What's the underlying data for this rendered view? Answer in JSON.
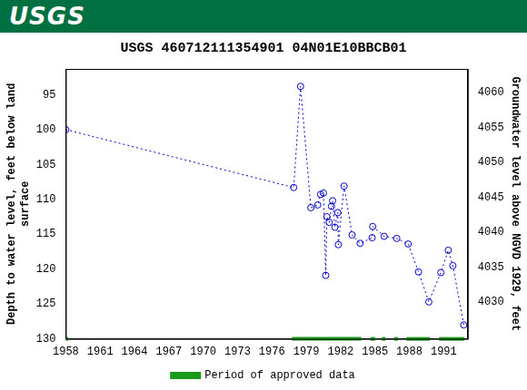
{
  "header": {
    "logo": "USGS"
  },
  "chart_data": {
    "type": "scatter",
    "title": "USGS 460712111354901 04N01E10BBCB01",
    "ylabel": [
      "Depth to water level, feet below land",
      "surface"
    ],
    "y2label": "Groundwater level above NGVD 1929, feet",
    "x": [
      1958.0,
      1977.9,
      1978.5,
      1979.4,
      1980.0,
      1980.25,
      1980.5,
      1980.7,
      1980.8,
      1981.0,
      1981.2,
      1981.3,
      1981.5,
      1981.75,
      1981.8,
      1982.3,
      1983.0,
      1983.7,
      1984.75,
      1984.8,
      1985.8,
      1986.9,
      1987.9,
      1988.8,
      1989.7,
      1990.75,
      1991.4,
      1991.8,
      1992.75
    ],
    "values": [
      100.0,
      108.3,
      93.8,
      111.2,
      110.8,
      109.3,
      109.1,
      120.9,
      112.5,
      113.3,
      111.0,
      110.2,
      114.0,
      111.9,
      116.5,
      108.1,
      115.1,
      116.3,
      115.5,
      113.9,
      115.3,
      115.6,
      116.4,
      120.4,
      124.7,
      120.5,
      117.3,
      119.5,
      128.0
    ],
    "color": "#0000cc",
    "marker": "circle",
    "line_style": "dotted",
    "xlim": [
      1958,
      1993.1
    ],
    "xticks": [
      1958,
      1961,
      1964,
      1967,
      1970,
      1973,
      1976,
      1979,
      1982,
      1985,
      1988,
      1991
    ],
    "ylim": [
      91.3,
      130
    ],
    "yticks": [
      95,
      100,
      105,
      110,
      115,
      120,
      125,
      130
    ],
    "y2lim": [
      4024.7,
      4063.4
    ],
    "y2ticks": [
      4030,
      4035,
      4040,
      4045,
      4050,
      4055,
      4060
    ],
    "approved_periods": {
      "name": "Period of approved data",
      "color": "#1a9a1a",
      "ranges": [
        [
          1958.0,
          1958.2
        ],
        [
          1977.75,
          1983.8
        ],
        [
          1984.6,
          1985.0
        ],
        [
          1985.6,
          1985.9
        ],
        [
          1986.7,
          1987.0
        ],
        [
          1987.75,
          1989.8
        ],
        [
          1990.6,
          1992.8
        ]
      ]
    },
    "legend": "bottom",
    "grid": false
  }
}
